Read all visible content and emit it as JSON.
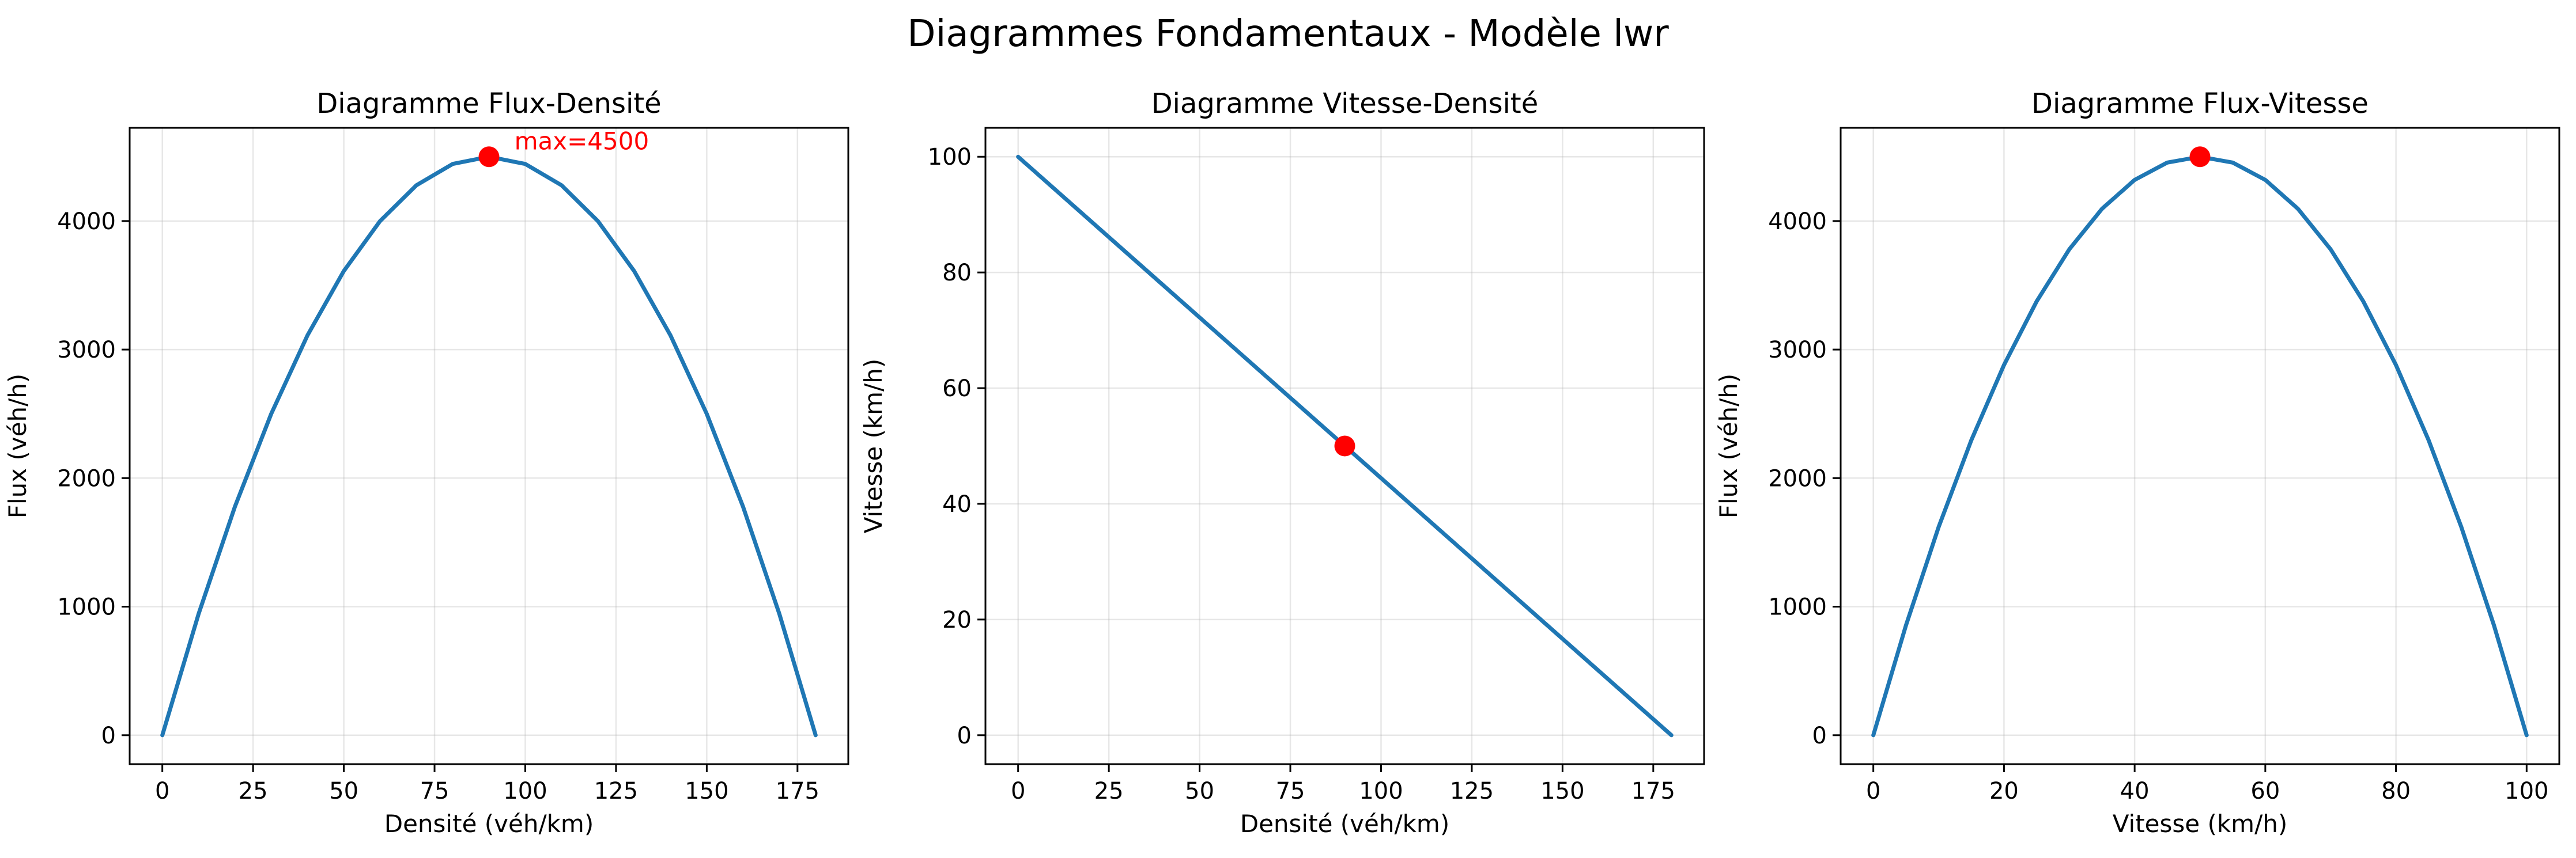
{
  "figure": {
    "title": "Diagrammes Fondamentaux - Modèle lwr"
  },
  "chart_data": [
    {
      "type": "line",
      "title": "Diagramme Flux-Densité",
      "xlabel": "Densité (véh/km)",
      "ylabel": "Flux (véh/h)",
      "xlim": [
        -9,
        189
      ],
      "ylim": [
        -225,
        4725
      ],
      "xticks": [
        0,
        25,
        50,
        75,
        100,
        125,
        150,
        175
      ],
      "yticks": [
        0,
        1000,
        2000,
        3000,
        4000
      ],
      "grid": true,
      "series": [
        {
          "color": "#1f77b4",
          "x": [
            0,
            10,
            20,
            30,
            40,
            50,
            60,
            70,
            80,
            90,
            100,
            110,
            120,
            130,
            140,
            150,
            160,
            170,
            180
          ],
          "y": [
            0,
            944,
            1778,
            2500,
            3111,
            3611,
            4000,
            4278,
            4444,
            4500,
            4444,
            4278,
            4000,
            3611,
            3111,
            2500,
            1778,
            944,
            0
          ]
        }
      ],
      "markers": [
        {
          "x": 90,
          "y": 4500,
          "color": "#ff0000"
        }
      ],
      "annotations": [
        {
          "text": "max=4500",
          "x": 97,
          "y": 4620,
          "color": "#ff0000"
        }
      ]
    },
    {
      "type": "line",
      "title": "Diagramme Vitesse-Densité",
      "xlabel": "Densité (véh/km)",
      "ylabel": "Vitesse (km/h)",
      "xlim": [
        -9,
        189
      ],
      "ylim": [
        -5,
        105
      ],
      "xticks": [
        0,
        25,
        50,
        75,
        100,
        125,
        150,
        175
      ],
      "yticks": [
        0,
        20,
        40,
        60,
        80,
        100
      ],
      "grid": true,
      "series": [
        {
          "color": "#1f77b4",
          "x": [
            0,
            180
          ],
          "y": [
            100,
            0
          ]
        }
      ],
      "markers": [
        {
          "x": 90,
          "y": 50,
          "color": "#ff0000"
        }
      ],
      "annotations": []
    },
    {
      "type": "line",
      "title": "Diagramme Flux-Vitesse",
      "xlabel": "Vitesse (km/h)",
      "ylabel": "Flux (véh/h)",
      "xlim": [
        -5,
        105
      ],
      "ylim": [
        -225,
        4725
      ],
      "xticks": [
        0,
        20,
        40,
        60,
        80,
        100
      ],
      "yticks": [
        0,
        1000,
        2000,
        3000,
        4000
      ],
      "grid": true,
      "series": [
        {
          "color": "#1f77b4",
          "x": [
            0,
            5,
            10,
            15,
            20,
            25,
            30,
            35,
            40,
            45,
            50,
            55,
            60,
            65,
            70,
            75,
            80,
            85,
            90,
            95,
            100
          ],
          "y": [
            0,
            855,
            1620,
            2295,
            2880,
            3375,
            3780,
            4095,
            4320,
            4455,
            4500,
            4455,
            4320,
            4095,
            3780,
            3375,
            2880,
            2295,
            1620,
            855,
            0
          ]
        }
      ],
      "markers": [
        {
          "x": 50,
          "y": 4500,
          "color": "#ff0000"
        }
      ],
      "annotations": []
    }
  ]
}
